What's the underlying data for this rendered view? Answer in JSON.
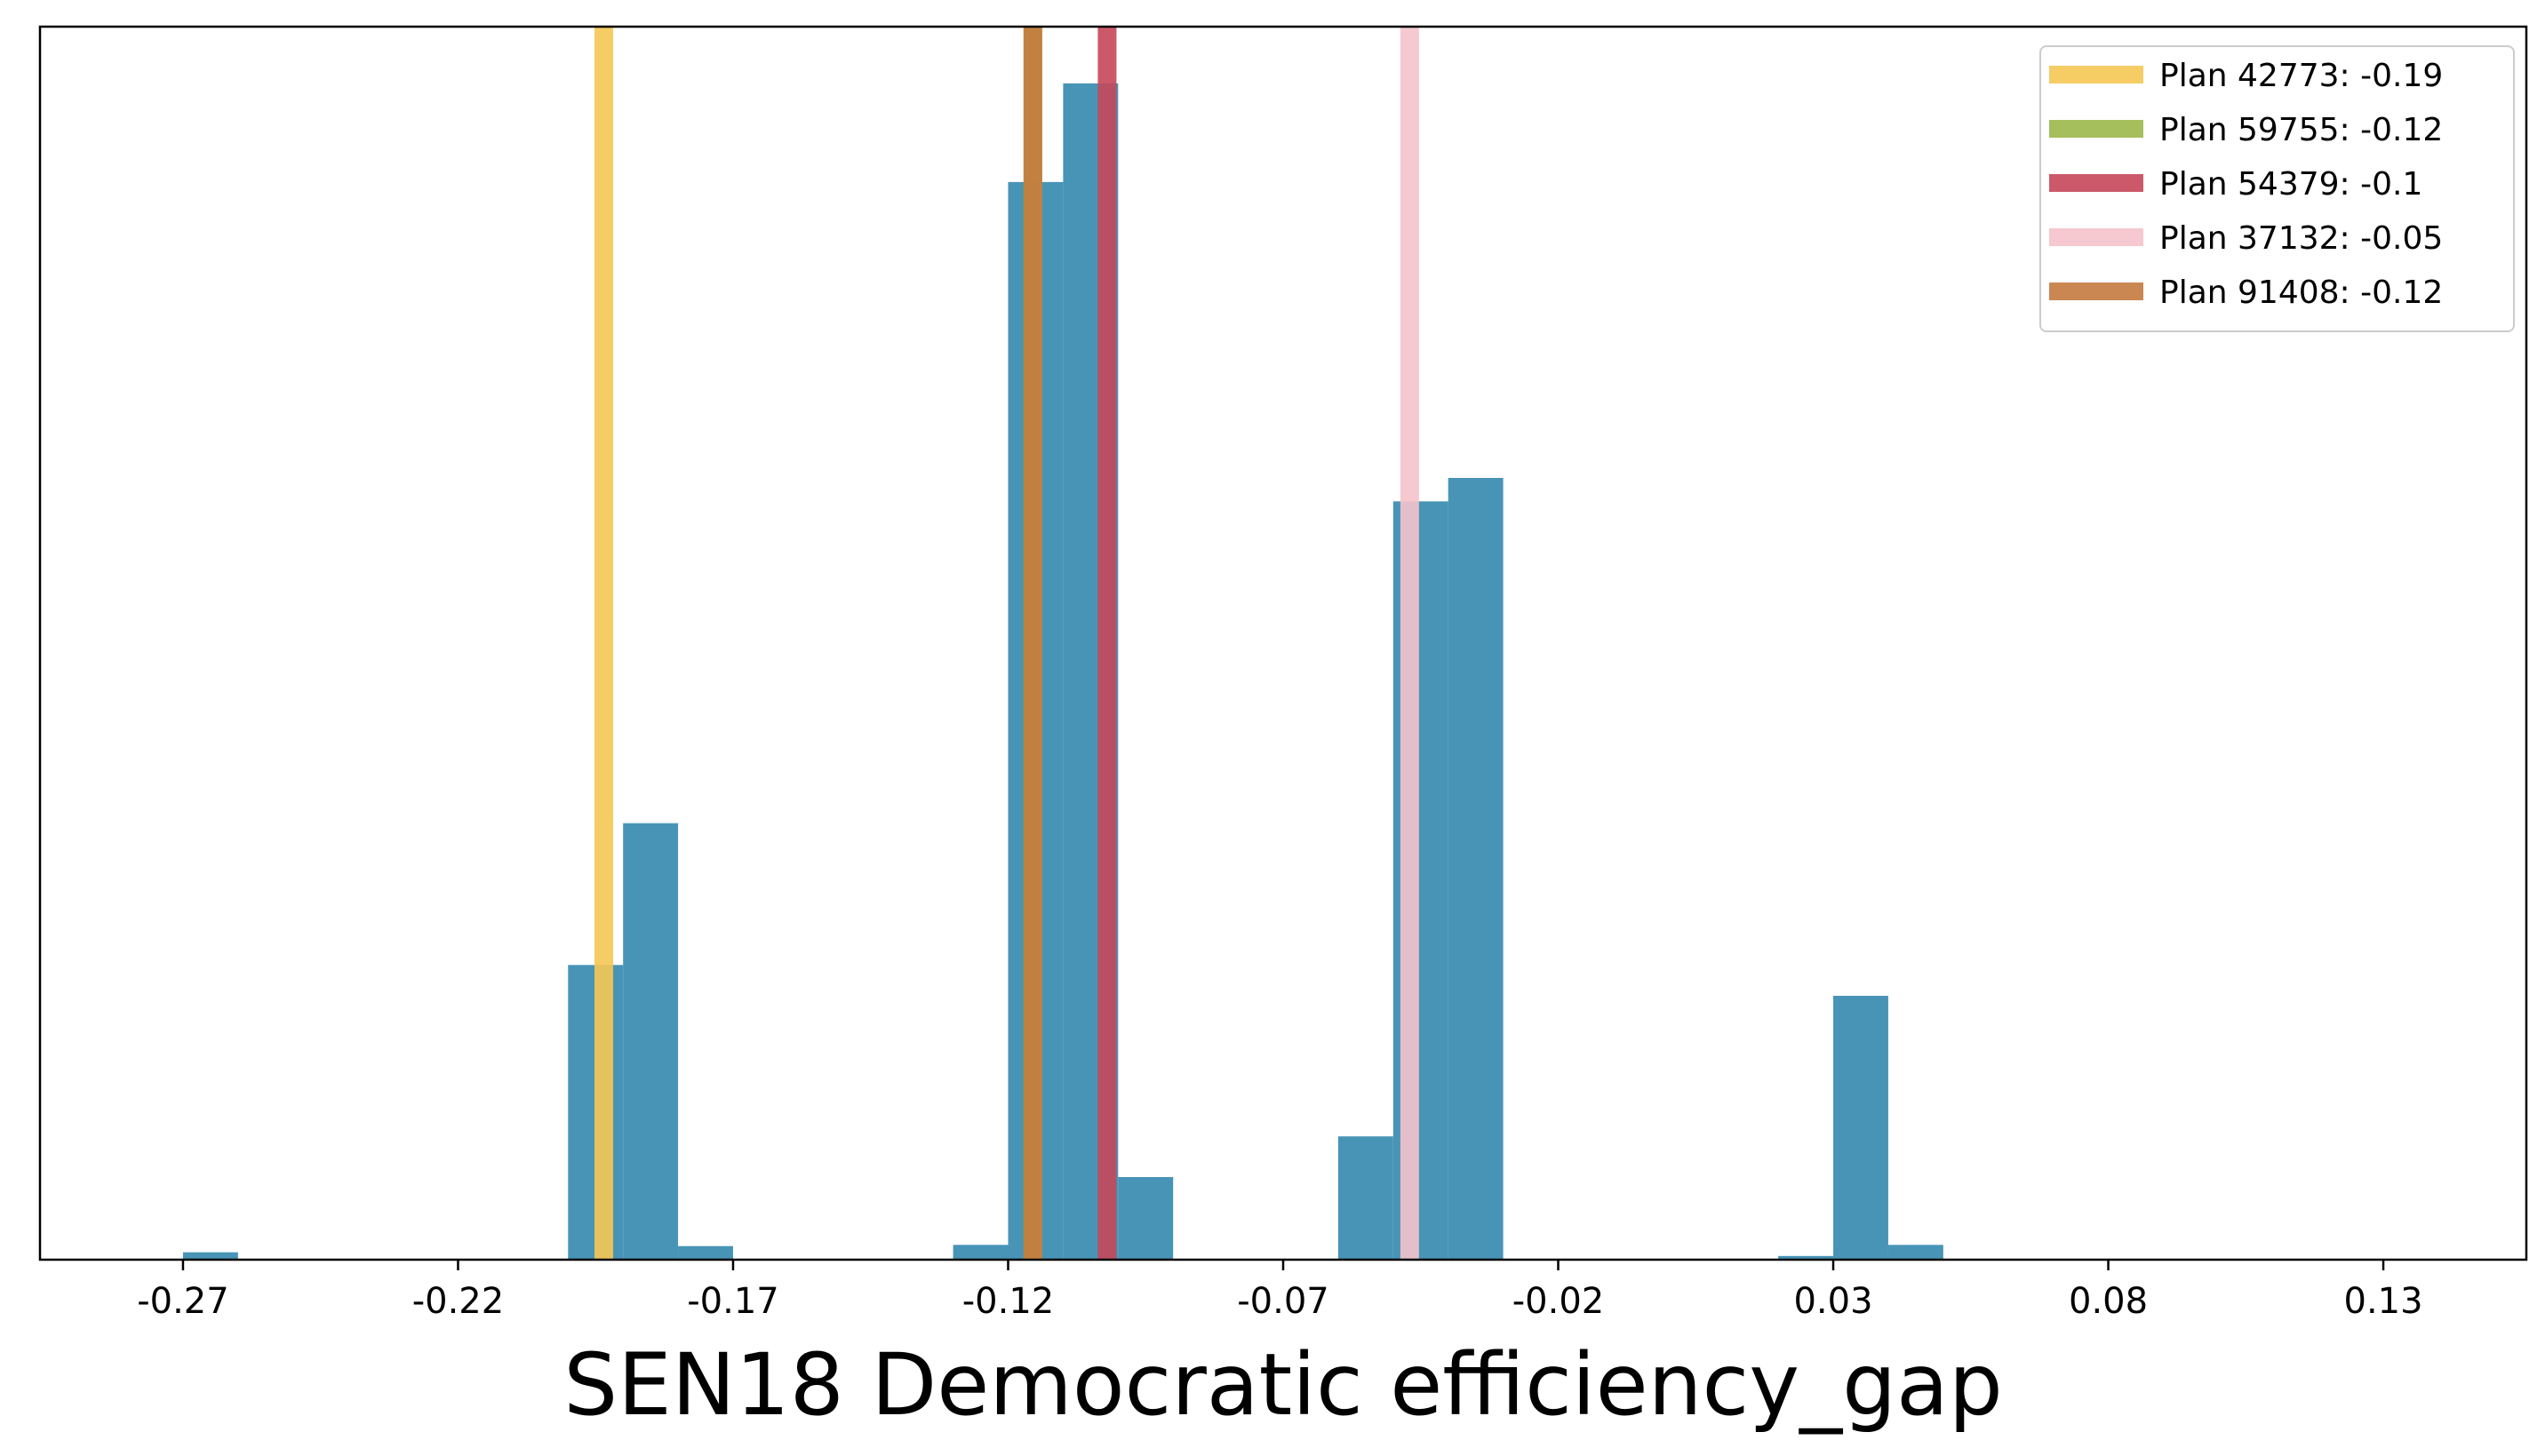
{
  "chart_data": {
    "type": "histogram",
    "title": "",
    "xlabel": "SEN18 Democratic efficiency_gap",
    "ylabel": "",
    "xlim": [
      -0.296,
      0.156
    ],
    "ylim": [
      0,
      1.0
    ],
    "grid": false,
    "y_ticks_visible": false,
    "x_ticks": [
      -0.27,
      -0.22,
      -0.17,
      -0.12,
      -0.07,
      -0.02,
      0.03,
      0.08,
      0.13
    ],
    "x_tick_labels": [
      "-0.27",
      "-0.22",
      "-0.17",
      "-0.12",
      "-0.07",
      "-0.02",
      "0.03",
      "0.08",
      "0.13"
    ],
    "bar_color": "#2f85ad",
    "bins": [
      {
        "x0": -0.27,
        "x1": -0.26,
        "height": 0.006
      },
      {
        "x0": -0.2,
        "x1": -0.19,
        "height": 0.239
      },
      {
        "x0": -0.19,
        "x1": -0.18,
        "height": 0.354
      },
      {
        "x0": -0.18,
        "x1": -0.17,
        "height": 0.011
      },
      {
        "x0": -0.13,
        "x1": -0.12,
        "height": 0.012
      },
      {
        "x0": -0.12,
        "x1": -0.11,
        "height": 0.874
      },
      {
        "x0": -0.11,
        "x1": -0.1,
        "height": 0.954
      },
      {
        "x0": -0.1,
        "x1": -0.09,
        "height": 0.067
      },
      {
        "x0": -0.06,
        "x1": -0.05,
        "height": 0.1
      },
      {
        "x0": -0.05,
        "x1": -0.04,
        "height": 0.615
      },
      {
        "x0": -0.04,
        "x1": -0.03,
        "height": 0.634
      },
      {
        "x0": 0.02,
        "x1": 0.03,
        "height": 0.003
      },
      {
        "x0": 0.03,
        "x1": 0.04,
        "height": 0.214
      },
      {
        "x0": 0.04,
        "x1": 0.05,
        "height": 0.012
      }
    ],
    "reference_lines": [
      {
        "name": "Plan 42773: -0.19",
        "x": -0.1935,
        "color": "#f5c653"
      },
      {
        "name": "Plan 59755: -0.12",
        "x": -0.1155,
        "color": "#9bb84a"
      },
      {
        "name": "Plan 54379: -0.1",
        "x": -0.102,
        "color": "#c5475a"
      },
      {
        "name": "Plan 37132: -0.05",
        "x": -0.047,
        "color": "#f5c2ca"
      },
      {
        "name": "Plan 91408: -0.12",
        "x": -0.1155,
        "color": "#c57a3e"
      }
    ],
    "legend_position": "upper right"
  }
}
